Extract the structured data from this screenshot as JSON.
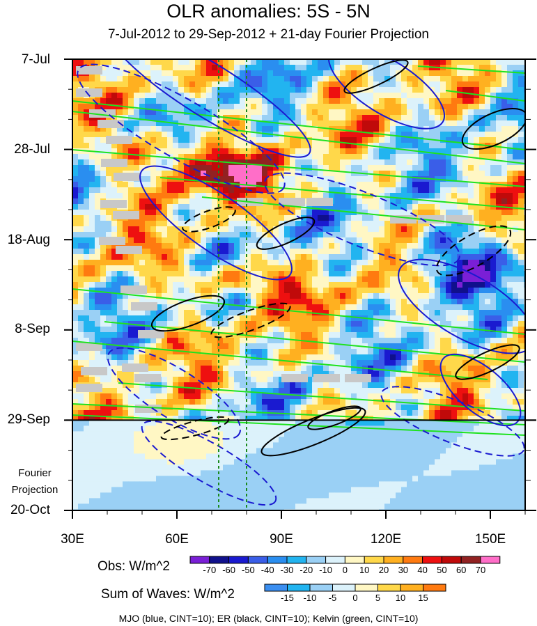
{
  "chart_data": {
    "type": "heatmap",
    "title": "OLR anomalies: 5S - 5N",
    "subtitle": "7-Jul-2012 to 29-Sep-2012 + 21-day Fourier Projection",
    "x_axis": {
      "range": [
        30,
        160
      ],
      "units": "degrees longitude",
      "tick_labels": [
        "30E",
        "60E",
        "90E",
        "120E",
        "150E"
      ],
      "tick_values": [
        30,
        60,
        90,
        120,
        150
      ]
    },
    "y_axis": {
      "range_days": [
        0,
        105
      ],
      "direction": "time increases downward",
      "tick_labels": [
        "7-Jul",
        "28-Jul",
        "18-Aug",
        "8-Sep",
        "29-Sep",
        "20-Oct"
      ],
      "tick_days": [
        0,
        21,
        42,
        63,
        84,
        105
      ]
    },
    "observation_end_day": 84,
    "projection_label_lines": [
      "Fourier",
      "Projection"
    ],
    "reference_longitudes": [
      72,
      80
    ],
    "obs_colorbar": {
      "title": "Obs: W/m^2",
      "levels": [
        "-70",
        "-60",
        "-50",
        "-40",
        "-30",
        "-20",
        "-10",
        "0",
        "10",
        "20",
        "30",
        "40",
        "50",
        "60",
        "70"
      ],
      "colors": [
        "#7a1fd6",
        "#10108c",
        "#1a1ad0",
        "#3a5ee8",
        "#2a8ef0",
        "#22b4f0",
        "#9ad0f5",
        "#dcf2fb",
        "#fff7c4",
        "#ffd84a",
        "#ffb020",
        "#ff7a10",
        "#ee1010",
        "#c00a0a",
        "#922222",
        "#ff6ec8"
      ]
    },
    "waves_colorbar": {
      "title": "Sum of Waves: W/m^2",
      "levels": [
        "-15",
        "-10",
        "-5",
        "0",
        "5",
        "10",
        "15"
      ],
      "colors": [
        "#3a8ef0",
        "#22b4f0",
        "#9ad0f5",
        "#dcf2fb",
        "#fff7c4",
        "#ffd84a",
        "#ffb020",
        "#ff7a10"
      ]
    },
    "contour_series": [
      {
        "name": "MJO",
        "color": "blue",
        "cint": 10
      },
      {
        "name": "ER",
        "color": "black",
        "cint": 10
      },
      {
        "name": "Kelvin",
        "color": "green",
        "cint": 10
      }
    ],
    "footer": "MJO (blue, CINT=10); ER (black, CINT=10); Kelvin (green, CINT=10)"
  }
}
